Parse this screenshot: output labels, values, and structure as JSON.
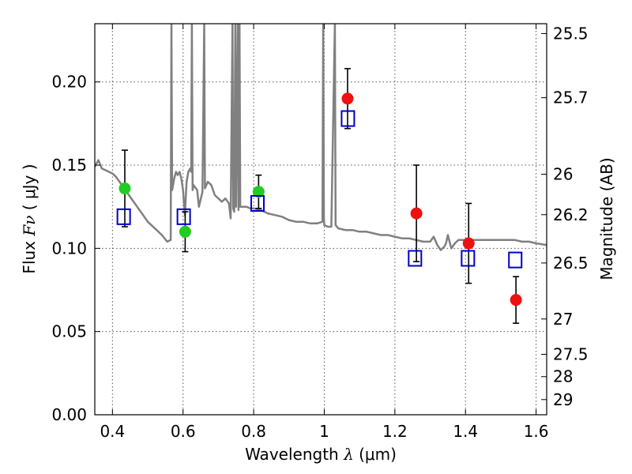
{
  "chart_data": {
    "type": "scatter",
    "title": "",
    "xlabel": {
      "prefix": "Wavelength  ",
      "symbol": "λ",
      "units": " (μm)"
    },
    "ylabel": {
      "prefix": "Flux  ",
      "symbol": "Fν",
      "units": "  ( μJy )"
    },
    "y2label": "Magnitude (AB)",
    "xlim": [
      0.35,
      1.63
    ],
    "ylim": [
      0.0,
      0.235
    ],
    "grid": true,
    "x_ticks": [
      {
        "value": 0.4,
        "label": "0.4"
      },
      {
        "value": 0.6,
        "label": "0.6"
      },
      {
        "value": 0.8,
        "label": "0.8"
      },
      {
        "value": 1.0,
        "label": "1"
      },
      {
        "value": 1.2,
        "label": "1.2"
      },
      {
        "value": 1.4,
        "label": "1.4"
      },
      {
        "value": 1.6,
        "label": "1.6"
      }
    ],
    "y_ticks": [
      {
        "value": 0.0,
        "label": "0.00"
      },
      {
        "value": 0.05,
        "label": "0.05"
      },
      {
        "value": 0.1,
        "label": "0.10"
      },
      {
        "value": 0.15,
        "label": "0.15"
      },
      {
        "value": 0.2,
        "label": "0.20"
      }
    ],
    "y2_ticks": [
      {
        "mag": 25.5,
        "label": "25.5"
      },
      {
        "mag": 25.7,
        "label": "25.7"
      },
      {
        "mag": 26.0,
        "label": "26"
      },
      {
        "mag": 26.2,
        "label": "26.2"
      },
      {
        "mag": 26.5,
        "label": "26.5"
      },
      {
        "mag": 27.0,
        "label": "27"
      },
      {
        "mag": 27.5,
        "label": "27.5"
      },
      {
        "mag": 28.0,
        "label": "28"
      },
      {
        "mag": 29.0,
        "label": "29"
      }
    ],
    "series": [
      {
        "kind": "line",
        "color": "#808080",
        "points": [
          [
            0.35,
            0.149
          ],
          [
            0.36,
            0.153
          ],
          [
            0.37,
            0.148
          ],
          [
            0.38,
            0.147
          ],
          [
            0.39,
            0.146
          ],
          [
            0.4,
            0.145
          ],
          [
            0.41,
            0.143
          ],
          [
            0.42,
            0.14
          ],
          [
            0.43,
            0.137
          ],
          [
            0.44,
            0.134
          ],
          [
            0.45,
            0.131
          ],
          [
            0.46,
            0.128
          ],
          [
            0.47,
            0.125
          ],
          [
            0.48,
            0.122
          ],
          [
            0.49,
            0.119
          ],
          [
            0.5,
            0.116
          ],
          [
            0.52,
            0.112
          ],
          [
            0.54,
            0.108
          ],
          [
            0.555,
            0.104
          ],
          [
            0.565,
            0.105
          ],
          [
            0.567,
            0.235
          ],
          [
            0.569,
            0.135
          ],
          [
            0.575,
            0.142
          ],
          [
            0.58,
            0.146
          ],
          [
            0.585,
            0.144
          ],
          [
            0.59,
            0.146
          ],
          [
            0.595,
            0.142
          ],
          [
            0.6,
            0.135
          ],
          [
            0.605,
            0.12
          ],
          [
            0.61,
            0.14
          ],
          [
            0.615,
            0.146
          ],
          [
            0.62,
            0.148
          ],
          [
            0.623,
            0.146
          ],
          [
            0.625,
            0.235
          ],
          [
            0.627,
            0.135
          ],
          [
            0.63,
            0.138
          ],
          [
            0.64,
            0.135
          ],
          [
            0.645,
            0.125
          ],
          [
            0.655,
            0.134
          ],
          [
            0.66,
            0.235
          ],
          [
            0.662,
            0.136
          ],
          [
            0.67,
            0.14
          ],
          [
            0.68,
            0.138
          ],
          [
            0.69,
            0.132
          ],
          [
            0.7,
            0.13
          ],
          [
            0.71,
            0.128
          ],
          [
            0.72,
            0.13
          ],
          [
            0.73,
            0.127
          ],
          [
            0.735,
            0.118
          ],
          [
            0.74,
            0.235
          ],
          [
            0.742,
            0.124
          ],
          [
            0.745,
            0.122
          ],
          [
            0.748,
            0.235
          ],
          [
            0.75,
            0.125
          ],
          [
            0.755,
            0.235
          ],
          [
            0.757,
            0.123
          ],
          [
            0.76,
            0.235
          ],
          [
            0.762,
            0.125
          ],
          [
            0.77,
            0.125
          ],
          [
            0.78,
            0.125
          ],
          [
            0.79,
            0.124
          ],
          [
            0.8,
            0.124
          ],
          [
            0.82,
            0.123
          ],
          [
            0.84,
            0.121
          ],
          [
            0.86,
            0.12
          ],
          [
            0.88,
            0.119
          ],
          [
            0.9,
            0.117
          ],
          [
            0.92,
            0.116
          ],
          [
            0.94,
            0.116
          ],
          [
            0.96,
            0.115
          ],
          [
            0.98,
            0.115
          ],
          [
            0.995,
            0.116
          ],
          [
            0.997,
            0.235
          ],
          [
            0.999,
            0.118
          ],
          [
            1.0,
            0.114
          ],
          [
            1.01,
            0.113
          ],
          [
            1.02,
            0.113
          ],
          [
            1.03,
            0.235
          ],
          [
            1.032,
            0.114
          ],
          [
            1.04,
            0.112
          ],
          [
            1.06,
            0.111
          ],
          [
            1.08,
            0.111
          ],
          [
            1.1,
            0.11
          ],
          [
            1.12,
            0.11
          ],
          [
            1.14,
            0.109
          ],
          [
            1.16,
            0.108
          ],
          [
            1.18,
            0.108
          ],
          [
            1.2,
            0.107
          ],
          [
            1.22,
            0.106
          ],
          [
            1.24,
            0.106
          ],
          [
            1.26,
            0.105
          ],
          [
            1.28,
            0.104
          ],
          [
            1.3,
            0.104
          ],
          [
            1.31,
            0.107
          ],
          [
            1.32,
            0.102
          ],
          [
            1.33,
            0.099
          ],
          [
            1.34,
            0.101
          ],
          [
            1.345,
            0.103
          ],
          [
            1.35,
            0.108
          ],
          [
            1.36,
            0.1
          ],
          [
            1.37,
            0.103
          ],
          [
            1.38,
            0.105
          ],
          [
            1.4,
            0.105
          ],
          [
            1.42,
            0.105
          ],
          [
            1.44,
            0.105
          ],
          [
            1.46,
            0.105
          ],
          [
            1.48,
            0.105
          ],
          [
            1.5,
            0.105
          ],
          [
            1.52,
            0.105
          ],
          [
            1.54,
            0.105
          ],
          [
            1.56,
            0.104
          ],
          [
            1.58,
            0.104
          ],
          [
            1.6,
            0.103
          ],
          [
            1.63,
            0.102
          ]
        ]
      },
      {
        "kind": "points",
        "marker": "circle",
        "color": "#22cc22",
        "points": [
          {
            "x": 0.435,
            "y": 0.136,
            "yerr": 0.023
          },
          {
            "x": 0.606,
            "y": 0.11,
            "yerr": 0.012
          },
          {
            "x": 0.814,
            "y": 0.134,
            "yerr": 0.01
          }
        ]
      },
      {
        "kind": "points",
        "marker": "circle",
        "color": "#ee1111",
        "points": [
          {
            "x": 1.066,
            "y": 0.19,
            "yerr": 0.018
          },
          {
            "x": 1.261,
            "y": 0.121,
            "yerr": 0.029
          },
          {
            "x": 1.409,
            "y": 0.103,
            "yerr": 0.024
          },
          {
            "x": 1.543,
            "y": 0.069,
            "yerr": 0.014
          }
        ]
      },
      {
        "kind": "points",
        "marker": "square-open",
        "color": "#0000cc",
        "points": [
          {
            "x": 0.432,
            "y": 0.119
          },
          {
            "x": 0.602,
            "y": 0.119
          },
          {
            "x": 0.811,
            "y": 0.127
          },
          {
            "x": 1.067,
            "y": 0.178
          },
          {
            "x": 1.257,
            "y": 0.094
          },
          {
            "x": 1.407,
            "y": 0.094
          },
          {
            "x": 1.541,
            "y": 0.093
          }
        ]
      }
    ]
  }
}
